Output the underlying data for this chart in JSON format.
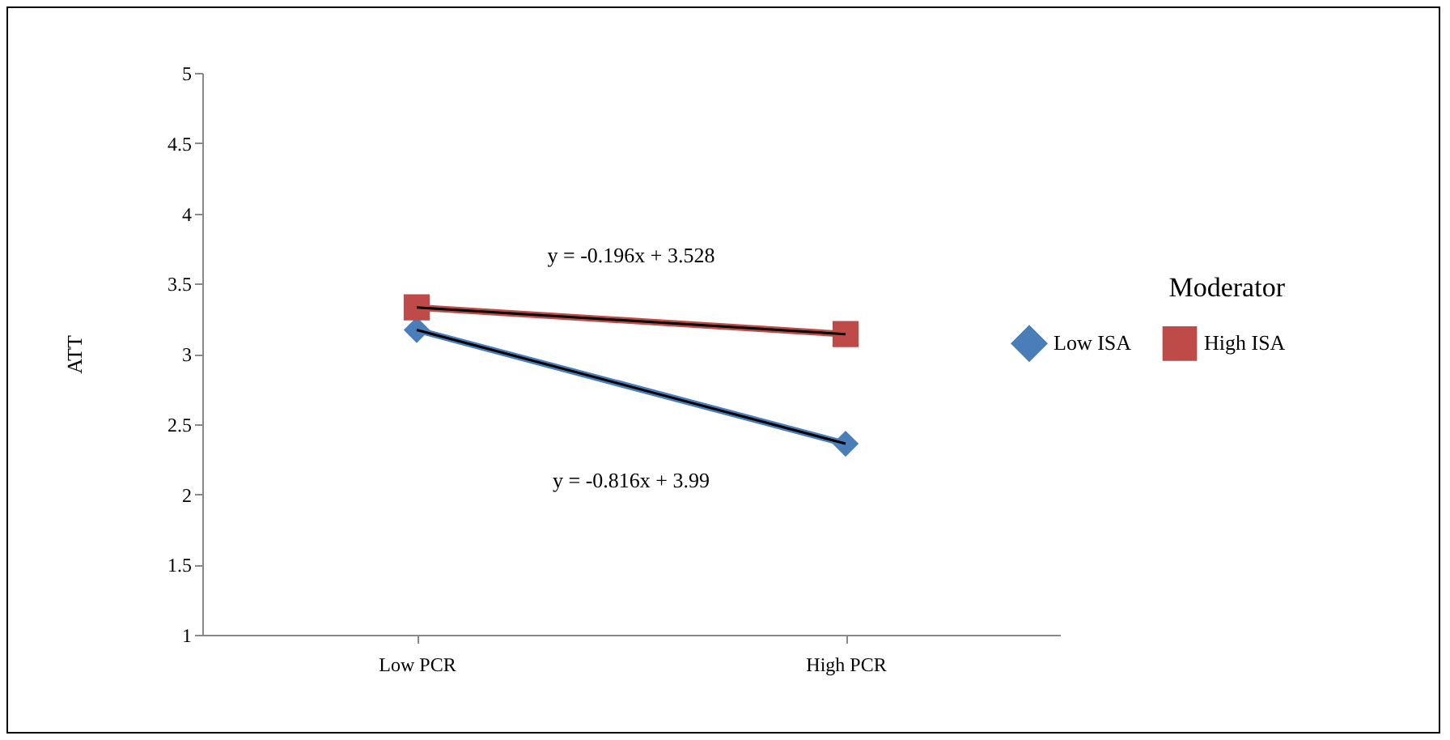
{
  "chart_data": {
    "type": "line",
    "ylabel": "ATT",
    "legend_title": "Moderator",
    "legend": "right",
    "grid": false,
    "categories": [
      "Low PCR",
      "High PCR"
    ],
    "ylim": [
      1,
      5
    ],
    "yticks": [
      1,
      1.5,
      2,
      2.5,
      3,
      3.5,
      4,
      4.5,
      5
    ],
    "series": [
      {
        "name": "Low ISA",
        "color": "#4a7ebb",
        "marker": "diamond",
        "values": [
          3.17,
          2.36
        ]
      },
      {
        "name": "High ISA",
        "color": "#be4b48",
        "marker": "square",
        "values": [
          3.33,
          3.14
        ]
      },
      {
        "type": "line",
        "color": "#000000",
        "x": [
          "Low PCR",
          "High PCR"
        ],
        "values": [
          3.17,
          2.36
        ]
      },
      {
        "type": "line",
        "color": "#000000",
        "x": [
          "Low PCR",
          "High PCR"
        ],
        "values": [
          3.33,
          3.14
        ]
      }
    ],
    "annotations": [
      "y = -0.196x + 3.528",
      "y = -0.816x + 3.99"
    ]
  }
}
